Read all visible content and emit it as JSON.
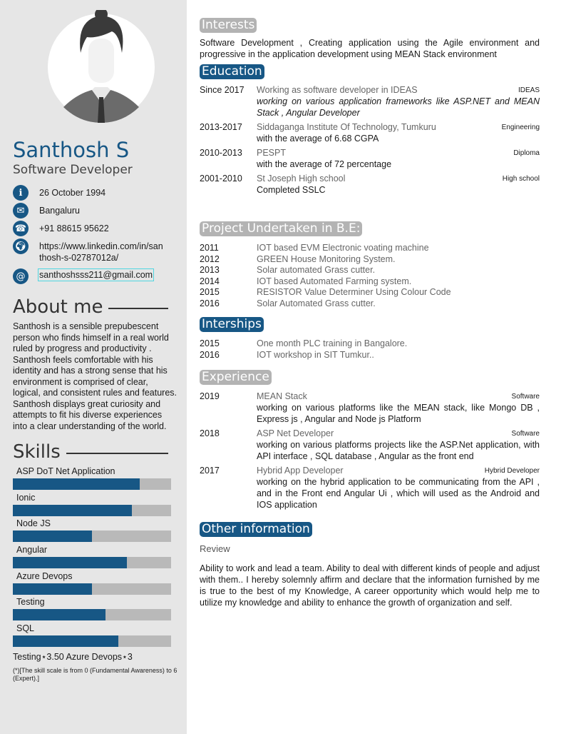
{
  "profile": {
    "name": "Santhosh S",
    "title": "Software Developer"
  },
  "contacts": [
    {
      "icon": "info-icon",
      "text": "26 October 1994"
    },
    {
      "icon": "envelope-icon",
      "text": "Bangaluru"
    },
    {
      "icon": "phone-icon",
      "text": "+91 88615 95622"
    },
    {
      "icon": "globe-icon",
      "text": "https://www.linkedin.com/in/santhosh-s-02787012a/"
    },
    {
      "icon": "at-icon",
      "text": "santhoshsss211@gmail.com"
    }
  ],
  "about": {
    "heading": "About me",
    "text": "Santhosh is a sensible prepubescent person who finds himself in a real world ruled by progress and productivity . Santhosh feels comfortable with his identity and has a strong sense that his environment is comprised of clear, logical, and consistent rules and features. Santhosh displays great curiosity and attempts to fit his diverse experiences into a clear understanding of the world."
  },
  "skills": {
    "heading": "Skills",
    "scale_max": 6,
    "items": [
      {
        "name": "ASP DoT Net Application",
        "level": 4.8
      },
      {
        "name": "Ionic",
        "level": 4.5
      },
      {
        "name": "Node JS",
        "level": 3
      },
      {
        "name": "Angular",
        "level": 4.33
      },
      {
        "name": "Azure Devops",
        "level": 3
      },
      {
        "name": "Testing",
        "level": 3.5
      },
      {
        "name": "SQL",
        "level": 4
      }
    ],
    "legend": "Testing⋆3.50 Azure Devops⋆3",
    "note": "(*)[The skill scale is from 0 (Fundamental Awareness) to 6 (Expert).]"
  },
  "colors": {
    "accent": "#175785",
    "sidebar_bg": "#e6e6e6",
    "heading_grey": "#b3b3b3",
    "bar_bg": "#b9b9b9"
  },
  "interests": {
    "heading": "Interests",
    "text": "Software Development , Creating application using the Agile environment and progressive in the application development using MEAN Stack environment"
  },
  "education": {
    "heading": "Education",
    "items": [
      {
        "date": "Since 2017",
        "title": "Working as software developer in IDEAS",
        "tag": "IDEAS",
        "desc": "working on various application frameworks like ASP.NET and MEAN Stack , Angular Developer",
        "italic": true
      },
      {
        "date": "2013-2017",
        "title": "Siddaganga Institute Of Technology, Tumkuru",
        "tag": "Engineering",
        "desc": "with the average of 6.68 CGPA"
      },
      {
        "date": "2010-2013",
        "title": "PESPT",
        "tag": "Diploma",
        "desc": "with the average of 72 percentage"
      },
      {
        "date": "2001-2010",
        "title": "St Joseph High school",
        "tag": "High school",
        "desc": "Completed SSLC"
      }
    ]
  },
  "projects": {
    "heading": "Project Undertaken in B.E:",
    "items": [
      {
        "date": "2011",
        "title": "IOT based EVM Electronic voating machine"
      },
      {
        "date": "2012",
        "title": "GREEN House Monitoring System."
      },
      {
        "date": "2013",
        "title": "Solar automated Grass cutter."
      },
      {
        "date": "2014",
        "title": "IOT based Automated Farming system."
      },
      {
        "date": "2015",
        "title": "RESISTOR Value Determiner Using Colour Code"
      },
      {
        "date": "2016",
        "title": "Solar Automated Grass cutter."
      }
    ]
  },
  "internships": {
    "heading": "Interships",
    "items": [
      {
        "date": "2015",
        "title": "One month PLC training in Bangalore."
      },
      {
        "date": "2016",
        "title": "IOT workshop in SIT Tumkur.."
      }
    ]
  },
  "experience": {
    "heading": "Experience",
    "items": [
      {
        "date": "2019",
        "title": "MEAN Stack",
        "tag": "Software",
        "desc": "working on various platforms like the MEAN stack, like Mongo DB , Express js , Angular and Node js Platform"
      },
      {
        "date": "2018",
        "title": "ASP Net Developer",
        "tag": "Software",
        "desc": "working on various platforms projects like the ASP.Net application, with API interface , SQL database , Angular as the front end"
      },
      {
        "date": "2017",
        "title": "Hybrid App Developer",
        "tag": "Hybrid Developer",
        "desc": "working on the hybrid application to be communicating from the API , and in the Front end Angular Ui , which will used as the Android and IOS application"
      }
    ]
  },
  "other": {
    "heading": "Other information",
    "subheading": "Review",
    "text": "Ability to work and lead a team. Ability to deal with different kinds of people and adjust with them.. I hereby solemnly affirm and declare that the information furnished by me is true to the best of my Knowledge, A career opportunity which would help me to utilize my knowledge and ability to enhance the growth of organization and self."
  }
}
